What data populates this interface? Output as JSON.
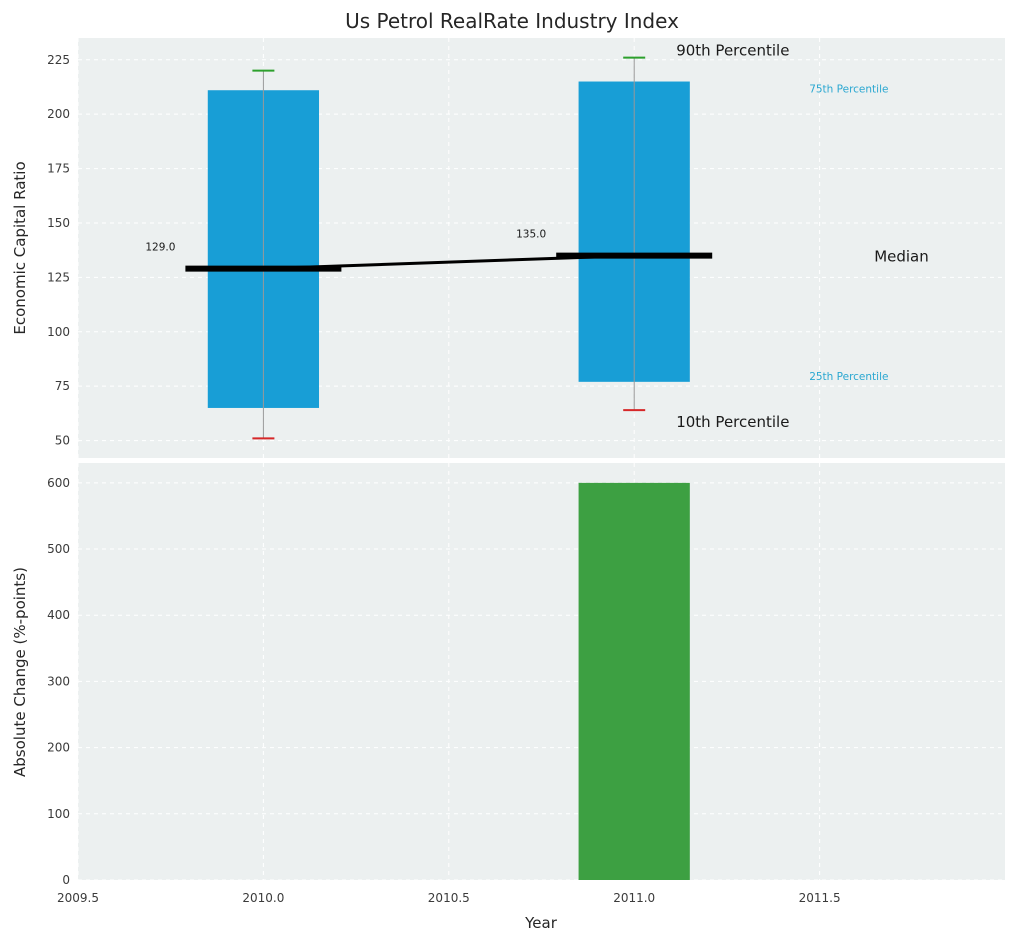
{
  "chart_data": {
    "type": "box",
    "title": "Us Petrol RealRate Industry Index",
    "xlabel": "Year",
    "xlim": [
      2009.5,
      2012.0
    ],
    "xtick_values": [
      2009.5,
      2010.0,
      2010.5,
      2011.0,
      2011.5
    ],
    "xtick_labels": [
      "2009.5",
      "2010.0",
      "2010.5",
      "2011.0",
      "2011.5"
    ],
    "legend_position": "none",
    "grid": true,
    "panels": [
      {
        "ylabel": "Economic Capital Ratio",
        "ylim": [
          42,
          235
        ],
        "yticks": [
          50,
          75,
          100,
          125,
          150,
          175,
          200,
          225
        ],
        "boxes": [
          {
            "year": 2010,
            "p10": 51,
            "p25": 65,
            "median": 129.0,
            "p75": 211,
            "p90": 220,
            "label": "129.0"
          },
          {
            "year": 2011,
            "p10": 64,
            "p25": 77,
            "median": 135.0,
            "p75": 215,
            "p90": 226,
            "label": "135.0"
          }
        ],
        "annotation_labels": {
          "p90": "90th Percentile",
          "p75": "75th Percentile",
          "median": "Median",
          "p25": "25th Percentile",
          "p10": "10th Percentile"
        }
      },
      {
        "ylabel": "Absolute Change (%-points)",
        "ylim": [
          0,
          630
        ],
        "yticks": [
          0,
          100,
          200,
          300,
          400,
          500,
          600
        ],
        "bars": [
          {
            "year": 2011,
            "value": 600
          }
        ]
      }
    ]
  },
  "colors": {
    "box_fill": "#189ED6",
    "bar_fill": "#3DA042",
    "median": "#000000",
    "whisker": "#999999",
    "cap_top": "#2CA02C",
    "cap_bottom": "#D62728",
    "percentile_label": "#2AA7D1",
    "panel_bg": "#ECF0F0",
    "grid": "#FFFFFF",
    "tick": "#3B3B3B",
    "text": "#1A1A1A"
  }
}
